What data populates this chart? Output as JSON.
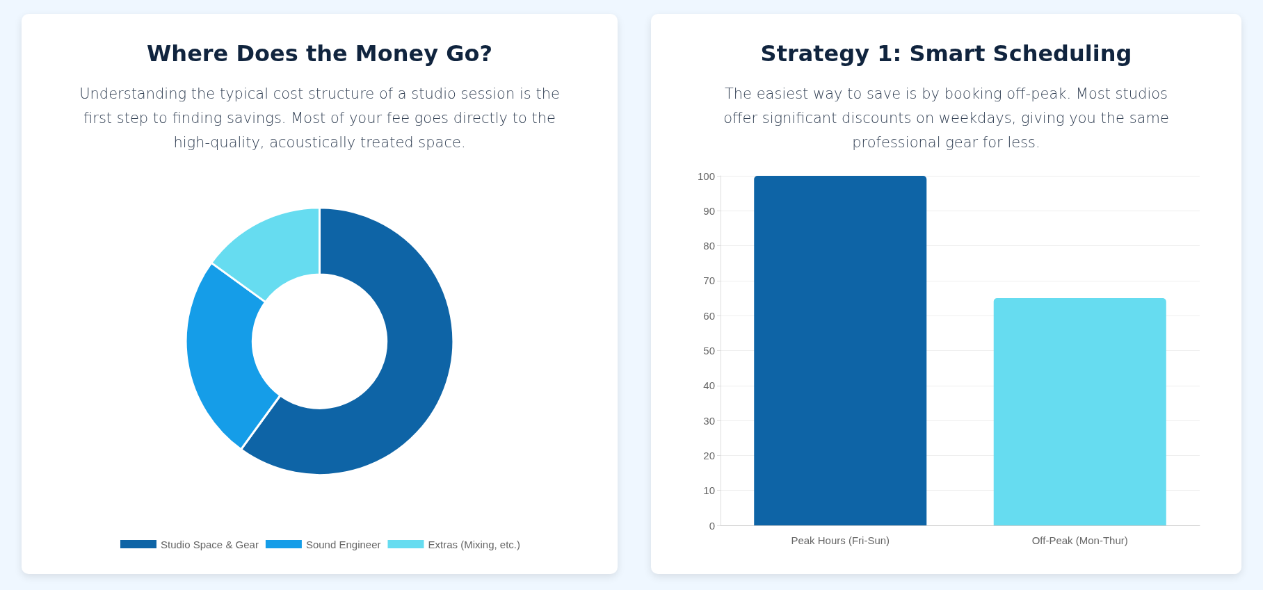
{
  "chart_data": [
    {
      "type": "donut",
      "title": "Where Does the Money Go?",
      "subtitle": "Understanding the typical cost structure of a studio session is the first step to finding savings. Most of your fee goes directly to the high-quality, acoustically treated space.",
      "categories": [
        "Studio Space & Gear",
        "Sound Engineer",
        "Extras (Mixing, etc.)"
      ],
      "values": [
        60,
        25,
        15
      ],
      "colors": [
        "#0e64a6",
        "#159de8",
        "#66dcf0"
      ],
      "legend": "bottom"
    },
    {
      "type": "bar",
      "title": "Strategy 1: Smart Scheduling",
      "subtitle": "The easiest way to save is by booking off-peak. Most studios offer significant discounts on weekdays, giving you the same professional gear for less.",
      "categories": [
        "Peak Hours (Fri-Sun)",
        "Off-Peak (Mon-Thur)"
      ],
      "values": [
        100,
        65
      ],
      "colors": [
        "#0e64a6",
        "#66dcf0"
      ],
      "ylim": [
        0,
        100
      ],
      "yticks": [
        0,
        10,
        20,
        30,
        40,
        50,
        60,
        70,
        80,
        90,
        100
      ],
      "grid": "y"
    }
  ]
}
